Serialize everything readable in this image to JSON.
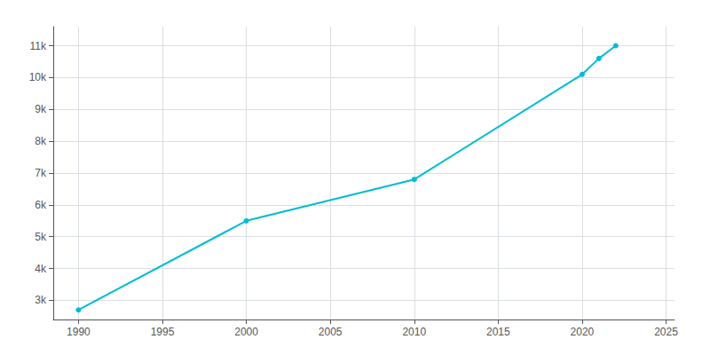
{
  "chart_data": {
    "type": "line",
    "x": [
      1990,
      2000,
      2010,
      2020,
      2021,
      2022
    ],
    "values": [
      2700,
      5500,
      6800,
      10100,
      10600,
      11000
    ],
    "color": "#00bcd4",
    "marker": "circle",
    "xlim": [
      1988.5,
      2025.5
    ],
    "xticks": [
      1990,
      1995,
      2000,
      2005,
      2010,
      2015,
      2020,
      2025
    ],
    "ylim": [
      2400,
      11600
    ],
    "yticks": [
      {
        "value": 3000,
        "label": "3k"
      },
      {
        "value": 4000,
        "label": "4k"
      },
      {
        "value": 5000,
        "label": "5k"
      },
      {
        "value": 6000,
        "label": "6k"
      },
      {
        "value": 7000,
        "label": "7k"
      },
      {
        "value": 8000,
        "label": "8k"
      },
      {
        "value": 9000,
        "label": "9k"
      },
      {
        "value": 10000,
        "label": "10k"
      },
      {
        "value": 11000,
        "label": "11k"
      }
    ],
    "grid": true
  }
}
